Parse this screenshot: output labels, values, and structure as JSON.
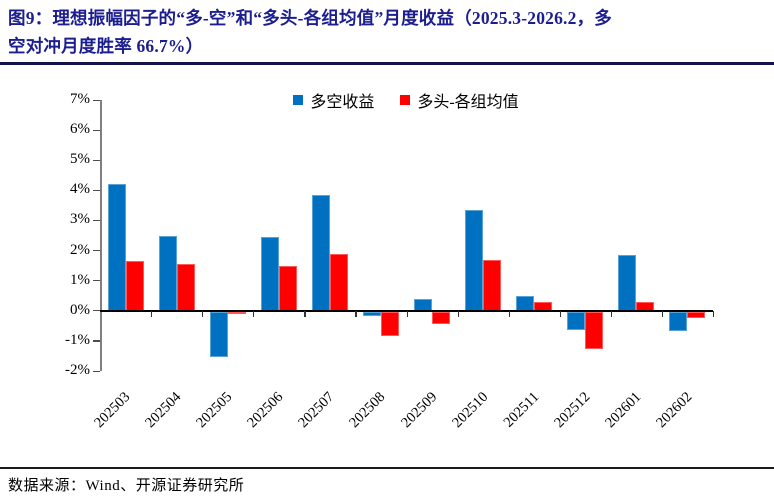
{
  "header": {
    "title_lines": [
      "图9：理想振幅因子的“多-空”和“多头-各组均值”月度收益（2025.3-2026.2，多",
      "空对冲月度胜率 66.7%）"
    ],
    "accent_color": "#1c1e8f"
  },
  "chart_data": {
    "type": "bar",
    "title": "图9：理想振幅因子的“多-空”和“多头-各组均值”月度收益（2025.3-2026.2，多空对冲月度胜率 66.7%）",
    "categories": [
      "202503",
      "202504",
      "202505",
      "202506",
      "202507",
      "202508",
      "202509",
      "202510",
      "202511",
      "202512",
      "202601",
      "202602"
    ],
    "series": [
      {
        "name": "多空收益",
        "color": "#0070C0",
        "values": [
          4.2,
          2.5,
          -1.5,
          2.45,
          3.85,
          -0.15,
          0.4,
          3.35,
          0.5,
          -0.6,
          1.85,
          -0.65
        ]
      },
      {
        "name": "多头-各组均值",
        "color": "#FF0000",
        "values": [
          1.65,
          1.55,
          -0.05,
          1.5,
          1.9,
          -0.8,
          -0.4,
          1.7,
          0.3,
          -1.25,
          0.3,
          -0.2
        ]
      }
    ],
    "ylabel": "",
    "xlabel": "",
    "ylim": [
      -2,
      7
    ],
    "y_tick_labels": [
      "7%",
      "6%",
      "5%",
      "4%",
      "3%",
      "2%",
      "1%",
      "0%",
      "-1%",
      "-2%"
    ],
    "y_tick_values": [
      7,
      6,
      5,
      4,
      3,
      2,
      1,
      0,
      -1,
      -2
    ],
    "grid": false,
    "legend_position": "top-center",
    "axis_color": "#7f7f7f",
    "zero_line_color": "#000000"
  },
  "footer": {
    "source": "数据来源：Wind、开源证券研究所"
  }
}
